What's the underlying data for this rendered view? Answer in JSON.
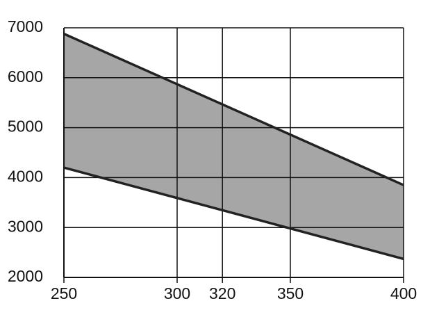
{
  "chart_data": {
    "type": "area-band",
    "x": [
      250,
      400
    ],
    "series": [
      {
        "color": "#222222",
        "values": [
          6880,
          3850
        ]
      },
      {
        "color": "#222222",
        "values": [
          4200,
          2370
        ]
      }
    ],
    "fill": "#a6a6a6",
    "xlim": [
      250,
      400
    ],
    "xticks": [
      250,
      300,
      320,
      350,
      400
    ],
    "ylim": [
      2000,
      7000
    ],
    "yticks": [
      2000,
      3000,
      4000,
      5000,
      6000,
      7000
    ],
    "grid": true
  }
}
